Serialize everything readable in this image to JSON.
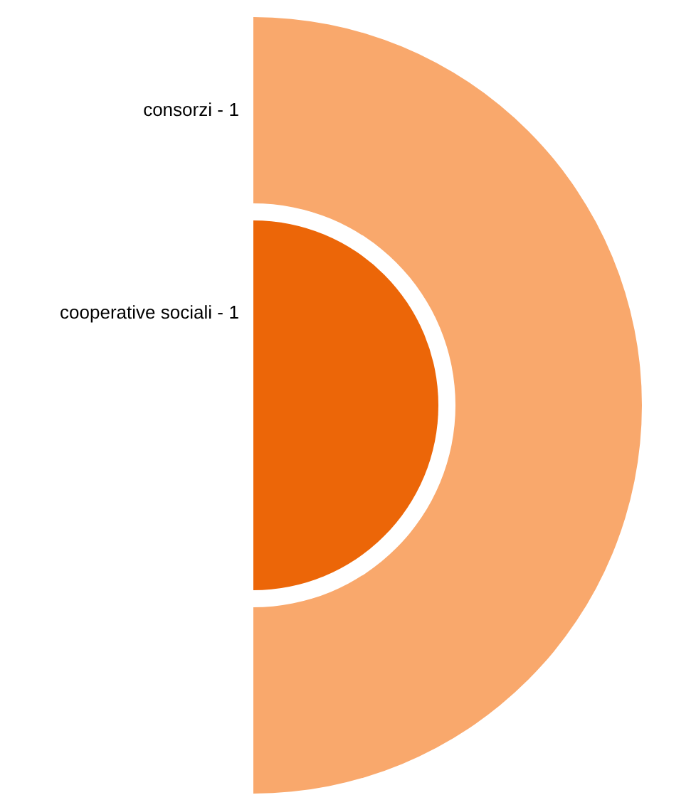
{
  "chart_data": {
    "type": "other",
    "categories": [
      "consorzi",
      "cooperative sociali"
    ],
    "values": [
      1,
      1
    ],
    "data_labels": true,
    "annotations": [
      "-",
      "-"
    ],
    "colors": [
      "#f9a86c",
      "#ec6608"
    ]
  }
}
